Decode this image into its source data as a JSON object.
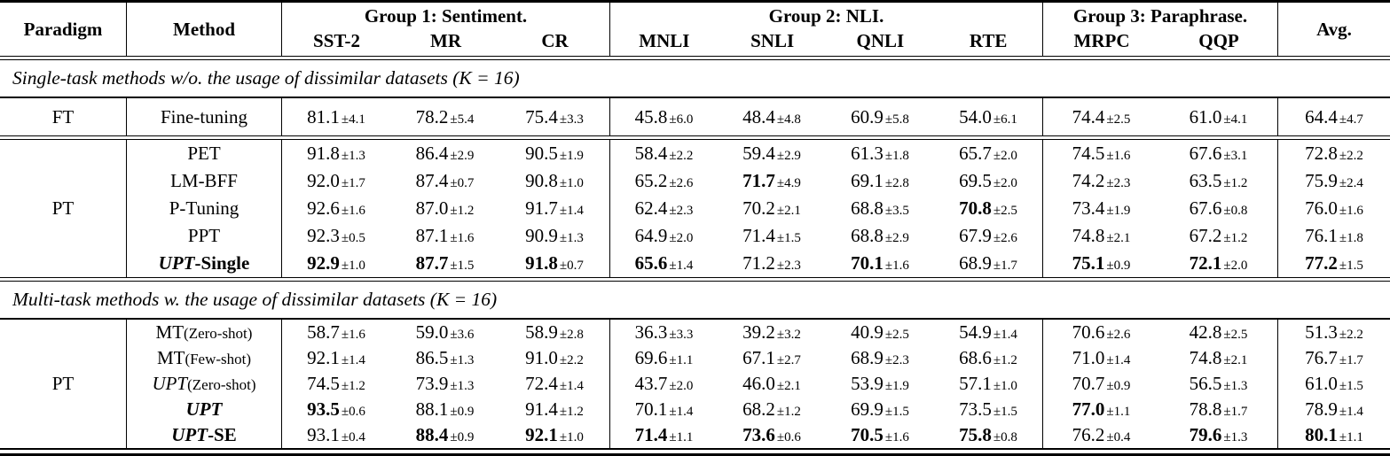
{
  "table": {
    "header": {
      "paradigm": "Paradigm",
      "method": "Method",
      "groups": [
        {
          "label": "Group 1: Sentiment.",
          "cols": [
            "SST-2",
            "MR",
            "CR"
          ]
        },
        {
          "label": "Group 2: NLI.",
          "cols": [
            "MNLI",
            "SNLI",
            "QNLI",
            "RTE"
          ]
        },
        {
          "label": "Group 3: Paraphrase.",
          "cols": [
            "MRPC",
            "QQP"
          ]
        }
      ],
      "avg": "Avg."
    },
    "sections": [
      {
        "caption": "Single-task methods w/o. the usage of dissimilar datasets (K = 16)",
        "blocks": [
          {
            "paradigm": "FT",
            "rows": [
              {
                "method": [
                  {
                    "t": "Fine-tuning",
                    "s": "r"
                  }
                ],
                "cells": [
                  {
                    "v": "81.1",
                    "e": "±4.1"
                  },
                  {
                    "v": "78.2",
                    "e": "±5.4"
                  },
                  {
                    "v": "75.4",
                    "e": "±3.3"
                  },
                  {
                    "v": "45.8",
                    "e": "±6.0"
                  },
                  {
                    "v": "48.4",
                    "e": "±4.8"
                  },
                  {
                    "v": "60.9",
                    "e": "±5.8"
                  },
                  {
                    "v": "54.0",
                    "e": "±6.1"
                  },
                  {
                    "v": "74.4",
                    "e": "±2.5"
                  },
                  {
                    "v": "61.0",
                    "e": "±4.1"
                  },
                  {
                    "v": "64.4",
                    "e": "±4.7"
                  }
                ]
              }
            ]
          },
          {
            "paradigm": "PT",
            "rows": [
              {
                "method": [
                  {
                    "t": "PET",
                    "s": "r"
                  }
                ],
                "cells": [
                  {
                    "v": "91.8",
                    "e": "±1.3"
                  },
                  {
                    "v": "86.4",
                    "e": "±2.9"
                  },
                  {
                    "v": "90.5",
                    "e": "±1.9"
                  },
                  {
                    "v": "58.4",
                    "e": "±2.2"
                  },
                  {
                    "v": "59.4",
                    "e": "±2.9"
                  },
                  {
                    "v": "61.3",
                    "e": "±1.8"
                  },
                  {
                    "v": "65.7",
                    "e": "±2.0"
                  },
                  {
                    "v": "74.5",
                    "e": "±1.6"
                  },
                  {
                    "v": "67.6",
                    "e": "±3.1"
                  },
                  {
                    "v": "72.8",
                    "e": "±2.2"
                  }
                ]
              },
              {
                "method": [
                  {
                    "t": "LM-BFF",
                    "s": "r"
                  }
                ],
                "cells": [
                  {
                    "v": "92.0",
                    "e": "±1.7"
                  },
                  {
                    "v": "87.4",
                    "e": "±0.7"
                  },
                  {
                    "v": "90.8",
                    "e": "±1.0"
                  },
                  {
                    "v": "65.2",
                    "e": "±2.6"
                  },
                  {
                    "v": "71.7",
                    "e": "±4.9",
                    "b": 1
                  },
                  {
                    "v": "69.1",
                    "e": "±2.8"
                  },
                  {
                    "v": "69.5",
                    "e": "±2.0"
                  },
                  {
                    "v": "74.2",
                    "e": "±2.3"
                  },
                  {
                    "v": "63.5",
                    "e": "±1.2"
                  },
                  {
                    "v": "75.9",
                    "e": "±2.4"
                  }
                ]
              },
              {
                "method": [
                  {
                    "t": "P-Tuning",
                    "s": "r"
                  }
                ],
                "cells": [
                  {
                    "v": "92.6",
                    "e": "±1.6"
                  },
                  {
                    "v": "87.0",
                    "e": "±1.2"
                  },
                  {
                    "v": "91.7",
                    "e": "±1.4"
                  },
                  {
                    "v": "62.4",
                    "e": "±2.3"
                  },
                  {
                    "v": "70.2",
                    "e": "±2.1"
                  },
                  {
                    "v": "68.8",
                    "e": "±3.5"
                  },
                  {
                    "v": "70.8",
                    "e": "±2.5",
                    "b": 1
                  },
                  {
                    "v": "73.4",
                    "e": "±1.9"
                  },
                  {
                    "v": "67.6",
                    "e": "±0.8"
                  },
                  {
                    "v": "76.0",
                    "e": "±1.6"
                  }
                ]
              },
              {
                "method": [
                  {
                    "t": "PPT",
                    "s": "r"
                  }
                ],
                "cells": [
                  {
                    "v": "92.3",
                    "e": "±0.5"
                  },
                  {
                    "v": "87.1",
                    "e": "±1.6"
                  },
                  {
                    "v": "90.9",
                    "e": "±1.3"
                  },
                  {
                    "v": "64.9",
                    "e": "±2.0"
                  },
                  {
                    "v": "71.4",
                    "e": "±1.5"
                  },
                  {
                    "v": "68.8",
                    "e": "±2.9"
                  },
                  {
                    "v": "67.9",
                    "e": "±2.6"
                  },
                  {
                    "v": "74.8",
                    "e": "±2.1"
                  },
                  {
                    "v": "67.2",
                    "e": "±1.2"
                  },
                  {
                    "v": "76.1",
                    "e": "±1.8"
                  }
                ]
              },
              {
                "method": [
                  {
                    "t": "UPT",
                    "s": "bi"
                  },
                  {
                    "t": "-Single",
                    "s": "b"
                  }
                ],
                "cells": [
                  {
                    "v": "92.9",
                    "e": "±1.0",
                    "b": 1
                  },
                  {
                    "v": "87.7",
                    "e": "±1.5",
                    "b": 1
                  },
                  {
                    "v": "91.8",
                    "e": "±0.7",
                    "b": 1
                  },
                  {
                    "v": "65.6",
                    "e": "±1.4",
                    "b": 1
                  },
                  {
                    "v": "71.2",
                    "e": "±2.3"
                  },
                  {
                    "v": "70.1",
                    "e": "±1.6",
                    "b": 1
                  },
                  {
                    "v": "68.9",
                    "e": "±1.7"
                  },
                  {
                    "v": "75.1",
                    "e": "±0.9",
                    "b": 1
                  },
                  {
                    "v": "72.1",
                    "e": "±2.0",
                    "b": 1
                  },
                  {
                    "v": "77.2",
                    "e": "±1.5",
                    "b": 1
                  }
                ]
              }
            ]
          }
        ]
      },
      {
        "caption": "Multi-task methods w. the usage of dissimilar datasets (K = 16)",
        "blocks": [
          {
            "paradigm": "PT",
            "rows": [
              {
                "method": [
                  {
                    "t": "MT",
                    "s": "r"
                  },
                  {
                    "t": "(Zero-shot)",
                    "s": "sm"
                  }
                ],
                "cells": [
                  {
                    "v": "58.7",
                    "e": "±1.6"
                  },
                  {
                    "v": "59.0",
                    "e": "±3.6"
                  },
                  {
                    "v": "58.9",
                    "e": "±2.8"
                  },
                  {
                    "v": "36.3",
                    "e": "±3.3"
                  },
                  {
                    "v": "39.2",
                    "e": "±3.2"
                  },
                  {
                    "v": "40.9",
                    "e": "±2.5"
                  },
                  {
                    "v": "54.9",
                    "e": "±1.4"
                  },
                  {
                    "v": "70.6",
                    "e": "±2.6"
                  },
                  {
                    "v": "42.8",
                    "e": "±2.5"
                  },
                  {
                    "v": "51.3",
                    "e": "±2.2"
                  }
                ]
              },
              {
                "method": [
                  {
                    "t": "MT",
                    "s": "r"
                  },
                  {
                    "t": "(Few-shot)",
                    "s": "sm"
                  }
                ],
                "cells": [
                  {
                    "v": "92.1",
                    "e": "±1.4"
                  },
                  {
                    "v": "86.5",
                    "e": "±1.3"
                  },
                  {
                    "v": "91.0",
                    "e": "±2.2"
                  },
                  {
                    "v": "69.6",
                    "e": "±1.1"
                  },
                  {
                    "v": "67.1",
                    "e": "±2.7"
                  },
                  {
                    "v": "68.9",
                    "e": "±2.3"
                  },
                  {
                    "v": "68.6",
                    "e": "±1.2"
                  },
                  {
                    "v": "71.0",
                    "e": "±1.4"
                  },
                  {
                    "v": "74.8",
                    "e": "±2.1"
                  },
                  {
                    "v": "76.7",
                    "e": "±1.7"
                  }
                ]
              },
              {
                "method": [
                  {
                    "t": "UPT",
                    "s": "i"
                  },
                  {
                    "t": "(Zero-shot)",
                    "s": "sm"
                  }
                ],
                "cells": [
                  {
                    "v": "74.5",
                    "e": "±1.2"
                  },
                  {
                    "v": "73.9",
                    "e": "±1.3"
                  },
                  {
                    "v": "72.4",
                    "e": "±1.4"
                  },
                  {
                    "v": "43.7",
                    "e": "±2.0"
                  },
                  {
                    "v": "46.0",
                    "e": "±2.1"
                  },
                  {
                    "v": "53.9",
                    "e": "±1.9"
                  },
                  {
                    "v": "57.1",
                    "e": "±1.0"
                  },
                  {
                    "v": "70.7",
                    "e": "±0.9"
                  },
                  {
                    "v": "56.5",
                    "e": "±1.3"
                  },
                  {
                    "v": "61.0",
                    "e": "±1.5"
                  }
                ]
              },
              {
                "method": [
                  {
                    "t": "UPT",
                    "s": "bi"
                  }
                ],
                "cells": [
                  {
                    "v": "93.5",
                    "e": "±0.6",
                    "b": 1
                  },
                  {
                    "v": "88.1",
                    "e": "±0.9"
                  },
                  {
                    "v": "91.4",
                    "e": "±1.2"
                  },
                  {
                    "v": "70.1",
                    "e": "±1.4"
                  },
                  {
                    "v": "68.2",
                    "e": "±1.2"
                  },
                  {
                    "v": "69.9",
                    "e": "±1.5"
                  },
                  {
                    "v": "73.5",
                    "e": "±1.5"
                  },
                  {
                    "v": "77.0",
                    "e": "±1.1",
                    "b": 1
                  },
                  {
                    "v": "78.8",
                    "e": "±1.7"
                  },
                  {
                    "v": "78.9",
                    "e": "±1.4"
                  }
                ]
              },
              {
                "method": [
                  {
                    "t": "UPT",
                    "s": "bi"
                  },
                  {
                    "t": "-SE",
                    "s": "b"
                  }
                ],
                "cells": [
                  {
                    "v": "93.1",
                    "e": "±0.4"
                  },
                  {
                    "v": "88.4",
                    "e": "±0.9",
                    "b": 1
                  },
                  {
                    "v": "92.1",
                    "e": "±1.0",
                    "b": 1
                  },
                  {
                    "v": "71.4",
                    "e": "±1.1",
                    "b": 1
                  },
                  {
                    "v": "73.6",
                    "e": "±0.6",
                    "b": 1
                  },
                  {
                    "v": "70.5",
                    "e": "±1.6",
                    "b": 1
                  },
                  {
                    "v": "75.8",
                    "e": "±0.8",
                    "b": 1
                  },
                  {
                    "v": "76.2",
                    "e": "±0.4"
                  },
                  {
                    "v": "79.6",
                    "e": "±1.3",
                    "b": 1
                  },
                  {
                    "v": "80.1",
                    "e": "±1.1",
                    "b": 1
                  }
                ]
              }
            ]
          }
        ]
      }
    ]
  }
}
